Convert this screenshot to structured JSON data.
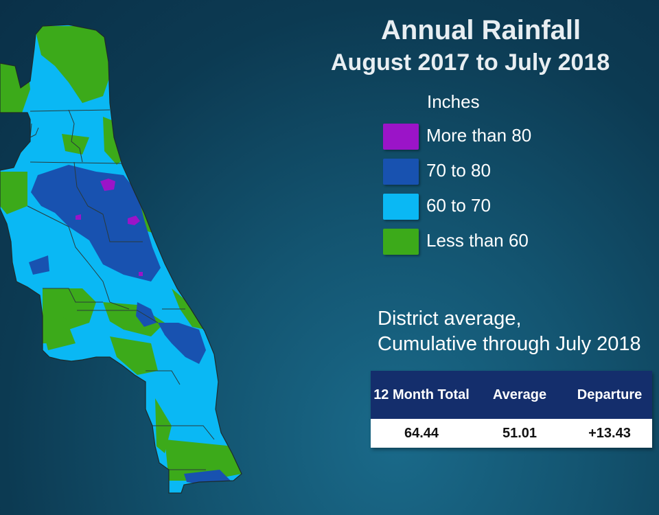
{
  "title": "Annual Rainfall",
  "subtitle": "August 2017 to July 2018",
  "legend": {
    "title": "Inches",
    "items": [
      {
        "label": "More than 80",
        "color": "#9b14c8"
      },
      {
        "label": "70 to 80",
        "color": "#1852b0"
      },
      {
        "label": "60 to 70",
        "color": "#0ab8f4"
      },
      {
        "label": "Less than 60",
        "color": "#3caa1a"
      }
    ]
  },
  "district_average": {
    "heading_line1": "District average,",
    "heading_line2": "Cumulative through July 2018",
    "headers": [
      "12 Month Total",
      "Average",
      "Departure"
    ],
    "values": [
      "64.44",
      "51.01",
      "+13.43"
    ]
  },
  "colors": {
    "boundary": "#2a3a3a",
    "background": "#0c3a52"
  }
}
